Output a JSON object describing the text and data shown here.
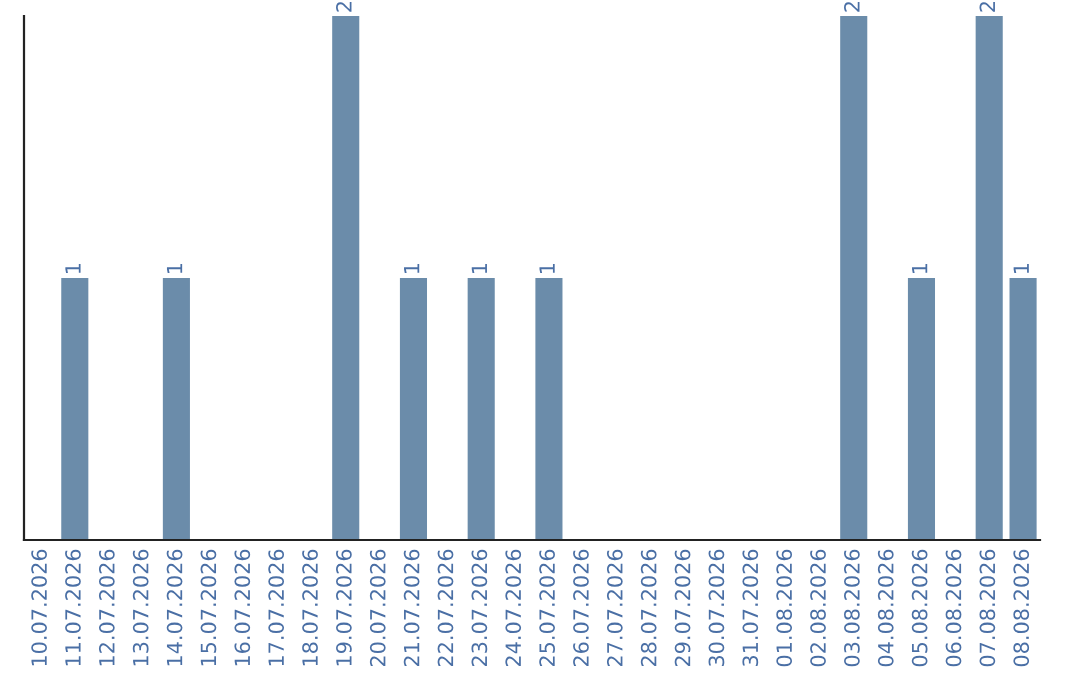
{
  "chart_data": {
    "type": "bar",
    "categories": [
      "10.07.2026",
      "11.07.2026",
      "12.07.2026",
      "13.07.2026",
      "14.07.2026",
      "15.07.2026",
      "16.07.2026",
      "17.07.2026",
      "18.07.2026",
      "19.07.2026",
      "20.07.2026",
      "21.07.2026",
      "22.07.2026",
      "23.07.2026",
      "24.07.2026",
      "25.07.2026",
      "26.07.2026",
      "27.07.2026",
      "28.07.2026",
      "29.07.2026",
      "30.07.2026",
      "31.07.2026",
      "01.08.2026",
      "02.08.2026",
      "03.08.2026",
      "04.08.2026",
      "05.08.2026",
      "06.08.2026",
      "07.08.2026",
      "08.08.2026"
    ],
    "values": [
      0,
      1,
      0,
      0,
      1,
      0,
      0,
      0,
      0,
      2,
      0,
      1,
      0,
      1,
      0,
      1,
      0,
      0,
      0,
      0,
      0,
      0,
      0,
      0,
      2,
      0,
      1,
      0,
      2,
      1
    ],
    "value_labels": [
      null,
      "1",
      null,
      null,
      "1",
      null,
      null,
      null,
      null,
      "2",
      null,
      "1",
      null,
      "1",
      null,
      "1",
      null,
      null,
      null,
      null,
      null,
      null,
      null,
      null,
      "2",
      null,
      "1",
      null,
      "2",
      "1"
    ],
    "color": "#6b8caa",
    "ylim": [
      0,
      2
    ],
    "tick_labels": "x",
    "grid": false,
    "legend": false
  }
}
